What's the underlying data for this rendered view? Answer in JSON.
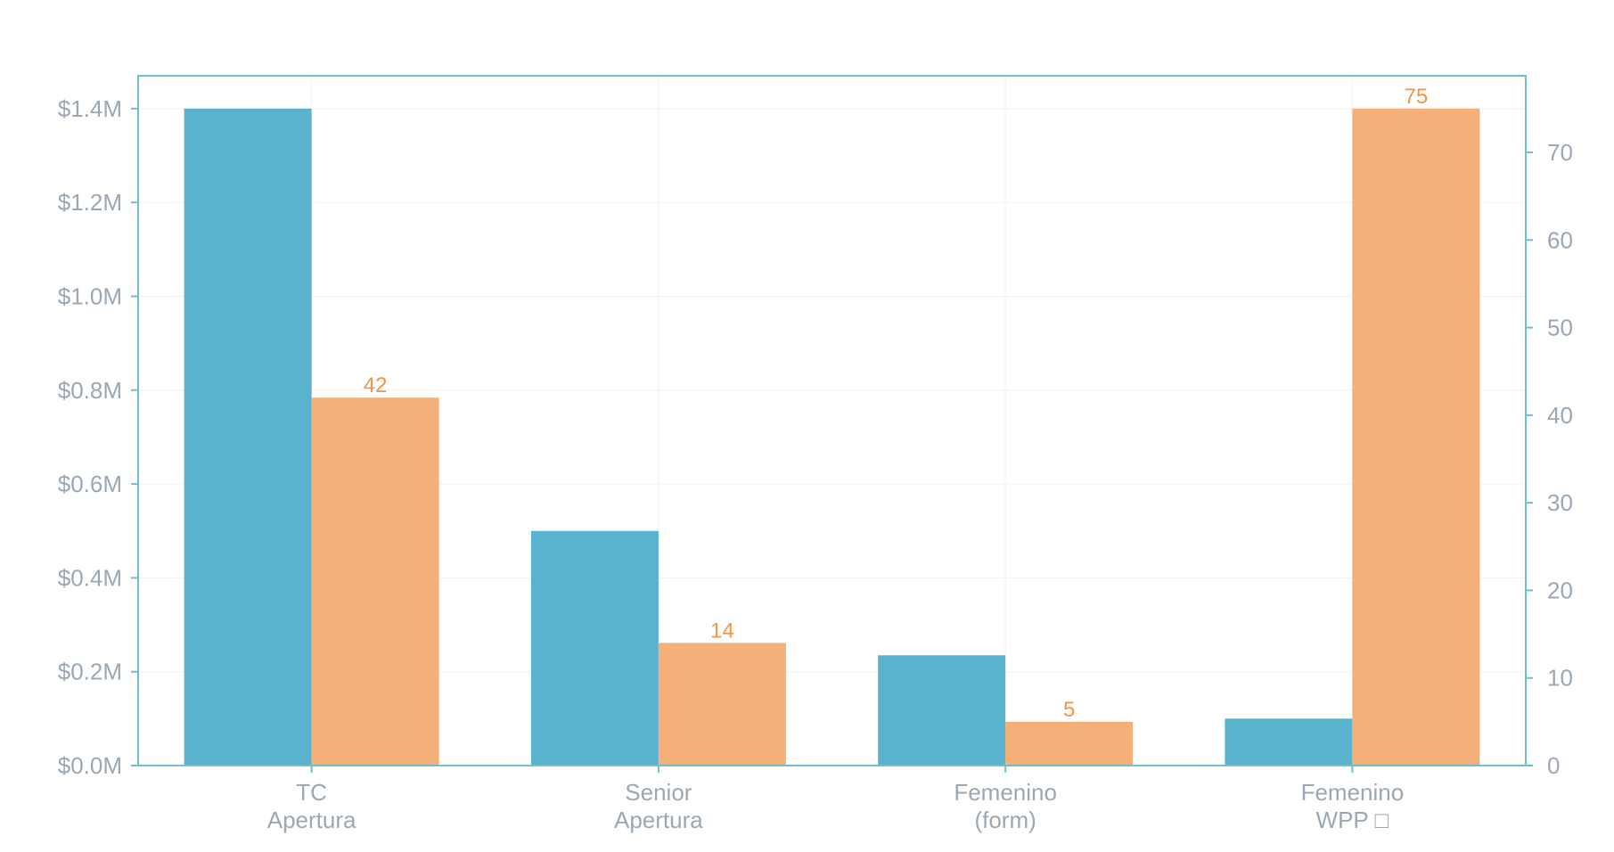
{
  "chart_data": {
    "type": "bar",
    "categories": [
      [
        "TC",
        "Apertura"
      ],
      [
        "Senior",
        "Apertura"
      ],
      [
        "Femenino",
        "(form)"
      ],
      [
        "Femenino",
        "WPP □"
      ]
    ],
    "series": [
      {
        "axis": "left",
        "color": "#5ab3ce",
        "values": [
          1400000,
          500000,
          235000,
          100000
        ],
        "show_labels": false
      },
      {
        "axis": "right",
        "color": "#f4b078",
        "values": [
          42,
          14,
          5,
          75
        ],
        "show_labels": true
      }
    ],
    "y_left": {
      "ylim": [
        0,
        1470000
      ],
      "ticks": [
        0,
        200000,
        400000,
        600000,
        800000,
        1000000,
        1200000,
        1400000
      ],
      "tick_labels": [
        "$0.0M",
        "$0.2M",
        "$0.4M",
        "$0.6M",
        "$0.8M",
        "$1.0M",
        "$1.2M",
        "$1.4M"
      ]
    },
    "y_right": {
      "ylim": [
        0,
        78.75
      ],
      "ticks": [
        0,
        10,
        20,
        30,
        40,
        50,
        60,
        70
      ],
      "tick_labels": [
        "0",
        "10",
        "20",
        "30",
        "40",
        "50",
        "60",
        "70"
      ]
    },
    "grid": true,
    "colors": {
      "axis": "#6fbfce",
      "grid": "#eef4f6",
      "tick_text": "#9aa8b6",
      "data_label": "#f0954a"
    }
  }
}
